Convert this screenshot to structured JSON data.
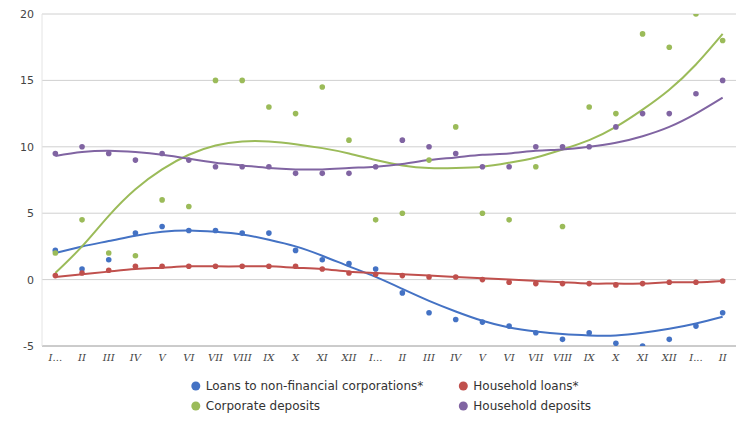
{
  "chart_data": {
    "type": "line",
    "categories": [
      "I...",
      "II",
      "III",
      "IV",
      "V",
      "VI",
      "VII",
      "VIII",
      "IX",
      "X",
      "XI",
      "XII",
      "I...",
      "II",
      "III",
      "IV",
      "V",
      "VI",
      "VII",
      "VIII",
      "IX",
      "X",
      "XI",
      "XII",
      "I...",
      "II"
    ],
    "series": [
      {
        "name": "Loans to non-financial corporations*",
        "type": "scatter",
        "color": "#4472c4",
        "values": [
          2.2,
          0.8,
          1.5,
          3.5,
          4.0,
          3.7,
          3.7,
          3.5,
          3.5,
          2.2,
          1.5,
          1.2,
          0.8,
          -1.0,
          -2.5,
          -3.0,
          -3.2,
          -3.5,
          -4.0,
          -4.5,
          -4.0,
          -4.8,
          -5.0,
          -4.5,
          -3.5,
          -2.5
        ]
      },
      {
        "name": "Household loans*",
        "type": "scatter",
        "color": "#c0504d",
        "values": [
          0.3,
          0.5,
          0.7,
          1.0,
          1.0,
          1.0,
          1.0,
          1.0,
          1.0,
          1.0,
          0.8,
          0.5,
          0.4,
          0.3,
          0.2,
          0.2,
          0.0,
          -0.2,
          -0.3,
          -0.3,
          -0.3,
          -0.4,
          -0.3,
          -0.2,
          -0.2,
          -0.1
        ]
      },
      {
        "name": "Corporate deposits",
        "type": "scatter",
        "color": "#9bbb59",
        "values": [
          2.0,
          4.5,
          2.0,
          1.8,
          6.0,
          5.5,
          15.0,
          15.0,
          13.0,
          12.5,
          14.5,
          10.5,
          4.5,
          5.0,
          9.0,
          11.5,
          5.0,
          4.5,
          8.5,
          4.0,
          13.0,
          12.5,
          18.5,
          17.5,
          20.0,
          18.0
        ]
      },
      {
        "name": "Household deposits",
        "type": "scatter",
        "color": "#8064a2",
        "values": [
          9.5,
          10.0,
          9.5,
          9.0,
          9.5,
          9.0,
          8.5,
          8.5,
          8.5,
          8.0,
          8.0,
          8.0,
          8.5,
          10.5,
          10.0,
          9.5,
          8.5,
          8.5,
          10.0,
          10.0,
          10.0,
          11.5,
          12.5,
          12.5,
          14.0,
          15.0
        ]
      },
      {
        "type": "line",
        "color": "#4472c4",
        "values": [
          2.0,
          2.5,
          2.9,
          3.3,
          3.6,
          3.7,
          3.6,
          3.4,
          3.0,
          2.5,
          1.8,
          1.0,
          0.2,
          -0.7,
          -1.6,
          -2.4,
          -3.1,
          -3.6,
          -3.9,
          -4.1,
          -4.2,
          -4.2,
          -4.0,
          -3.7,
          -3.3,
          -2.8
        ]
      },
      {
        "type": "line",
        "color": "#c0504d",
        "values": [
          0.2,
          0.4,
          0.6,
          0.8,
          0.9,
          1.0,
          1.0,
          1.0,
          1.0,
          0.9,
          0.8,
          0.6,
          0.5,
          0.4,
          0.3,
          0.2,
          0.1,
          0.0,
          -0.1,
          -0.2,
          -0.3,
          -0.3,
          -0.3,
          -0.2,
          -0.2,
          -0.1
        ]
      },
      {
        "type": "line",
        "color": "#9bbb59",
        "values": [
          0.5,
          2.5,
          4.8,
          6.8,
          8.3,
          9.4,
          10.1,
          10.4,
          10.4,
          10.2,
          9.9,
          9.5,
          9.0,
          8.6,
          8.4,
          8.4,
          8.5,
          8.8,
          9.2,
          9.8,
          10.5,
          11.5,
          12.8,
          14.3,
          16.2,
          18.5
        ]
      },
      {
        "type": "line",
        "color": "#8064a2",
        "values": [
          9.3,
          9.6,
          9.7,
          9.6,
          9.4,
          9.1,
          8.8,
          8.6,
          8.4,
          8.3,
          8.3,
          8.4,
          8.5,
          8.7,
          9.0,
          9.2,
          9.4,
          9.5,
          9.7,
          9.8,
          10.0,
          10.3,
          10.8,
          11.5,
          12.5,
          13.7
        ]
      }
    ],
    "ylim": [
      -5,
      20
    ],
    "yticks": [
      -5,
      0,
      5,
      10,
      15,
      20
    ],
    "grid": true,
    "legend": "bottom"
  }
}
